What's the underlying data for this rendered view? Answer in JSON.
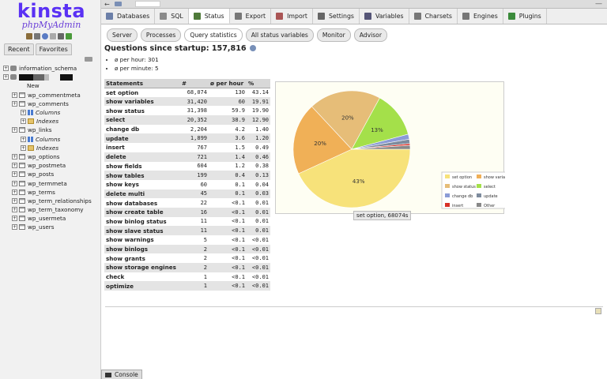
{
  "sidebar": {
    "logo_main": "kinsta",
    "logo_sub": "phpMyAdmin",
    "tabs": [
      "Recent",
      "Favorites"
    ],
    "tree": [
      {
        "label": "information_schema",
        "kind": "db",
        "level": 0
      },
      {
        "label": "",
        "kind": "db-redacted",
        "level": 0
      },
      {
        "label": "New",
        "kind": "new",
        "level": 1
      },
      {
        "label": "wp_commentmeta",
        "kind": "table",
        "level": 1
      },
      {
        "label": "wp_comments",
        "kind": "table",
        "level": 1
      },
      {
        "label": "Columns",
        "kind": "columns",
        "level": 2
      },
      {
        "label": "Indexes",
        "kind": "indexes",
        "level": 2
      },
      {
        "label": "wp_links",
        "kind": "table",
        "level": 1
      },
      {
        "label": "Columns",
        "kind": "columns",
        "level": 2
      },
      {
        "label": "Indexes",
        "kind": "indexes",
        "level": 2
      },
      {
        "label": "wp_options",
        "kind": "table",
        "level": 1
      },
      {
        "label": "wp_postmeta",
        "kind": "table",
        "level": 1
      },
      {
        "label": "wp_posts",
        "kind": "table",
        "level": 1
      },
      {
        "label": "wp_termmeta",
        "kind": "table",
        "level": 1
      },
      {
        "label": "wp_terms",
        "kind": "table",
        "level": 1
      },
      {
        "label": "wp_term_relationships",
        "kind": "table",
        "level": 1
      },
      {
        "label": "wp_term_taxonomy",
        "kind": "table",
        "level": 1
      },
      {
        "label": "wp_usermeta",
        "kind": "table",
        "level": 1
      },
      {
        "label": "wp_users",
        "kind": "table",
        "level": 1
      }
    ]
  },
  "main_tabs": [
    {
      "label": "Databases",
      "icon": "databases-icon",
      "color": "#6b7fa8"
    },
    {
      "label": "SQL",
      "icon": "sql-icon",
      "color": "#8a8a8a"
    },
    {
      "label": "Status",
      "icon": "status-icon",
      "color": "#4f7a3a",
      "active": true
    },
    {
      "label": "Export",
      "icon": "export-icon",
      "color": "#777"
    },
    {
      "label": "Import",
      "icon": "import-icon",
      "color": "#a55"
    },
    {
      "label": "Settings",
      "icon": "settings-icon",
      "color": "#666"
    },
    {
      "label": "Variables",
      "icon": "variables-icon",
      "color": "#557"
    },
    {
      "label": "Charsets",
      "icon": "charsets-icon",
      "color": "#777"
    },
    {
      "label": "Engines",
      "icon": "engines-icon",
      "color": "#777"
    },
    {
      "label": "Plugins",
      "icon": "plugins-icon",
      "color": "#3a8a3a"
    }
  ],
  "sub_tabs": [
    {
      "label": "Server"
    },
    {
      "label": "Processes"
    },
    {
      "label": "Query statistics",
      "active": true
    },
    {
      "label": "All status variables"
    },
    {
      "label": "Monitor"
    },
    {
      "label": "Advisor"
    }
  ],
  "questions": {
    "title": "Questions since startup: 157,816",
    "per_hour": "ø per hour: 301",
    "per_minute": "ø per minute: 5"
  },
  "table": {
    "headers": [
      "Statements",
      "#",
      "ø per hour",
      "%"
    ],
    "rows": [
      [
        "set option",
        "68,074",
        "130",
        "43.14"
      ],
      [
        "show variables",
        "31,420",
        "60",
        "19.91"
      ],
      [
        "show status",
        "31,398",
        "59.9",
        "19.90"
      ],
      [
        "select",
        "20,352",
        "38.9",
        "12.90"
      ],
      [
        "change db",
        "2,204",
        "4.2",
        "1.40"
      ],
      [
        "update",
        "1,899",
        "3.6",
        "1.20"
      ],
      [
        "insert",
        "767",
        "1.5",
        "0.49"
      ],
      [
        "delete",
        "721",
        "1.4",
        "0.46"
      ],
      [
        "show fields",
        "604",
        "1.2",
        "0.38"
      ],
      [
        "show tables",
        "199",
        "0.4",
        "0.13"
      ],
      [
        "show keys",
        "60",
        "0.1",
        "0.04"
      ],
      [
        "delete multi",
        "45",
        "0.1",
        "0.03"
      ],
      [
        "show databases",
        "22",
        "<0.1",
        "0.01"
      ],
      [
        "show create table",
        "16",
        "<0.1",
        "0.01"
      ],
      [
        "show binlog status",
        "11",
        "<0.1",
        "0.01"
      ],
      [
        "show slave status",
        "11",
        "<0.1",
        "0.01"
      ],
      [
        "show warnings",
        "5",
        "<0.1",
        "<0.01"
      ],
      [
        "show binlogs",
        "2",
        "<0.1",
        "<0.01"
      ],
      [
        "show grants",
        "2",
        "<0.1",
        "<0.01"
      ],
      [
        "show storage engines",
        "2",
        "<0.1",
        "<0.01"
      ],
      [
        "check",
        "1",
        "<0.1",
        "<0.01"
      ],
      [
        "optimize",
        "1",
        "<0.1",
        "<0.01"
      ]
    ]
  },
  "chart_data": {
    "type": "pie",
    "slices": [
      {
        "name": "set option",
        "value": 43.14,
        "color": "#f7e27a",
        "label": "43%"
      },
      {
        "name": "show variables",
        "value": 19.91,
        "color": "#f0b057",
        "label": "20%"
      },
      {
        "name": "show status",
        "value": 19.9,
        "color": "#e6bd78",
        "label": "20%"
      },
      {
        "name": "select",
        "value": 12.9,
        "color": "#a4e04a",
        "label": "13%"
      },
      {
        "name": "change db",
        "value": 1.4,
        "color": "#8b9bd6",
        "label": ""
      },
      {
        "name": "update",
        "value": 1.2,
        "color": "#7d8b9d",
        "label": ""
      },
      {
        "name": "insert",
        "value": 0.49,
        "color": "#d73027",
        "label": ""
      },
      {
        "name": "Other",
        "value": 1.06,
        "color": "#888888",
        "label": ""
      }
    ],
    "legend": [
      "set option",
      "show variables",
      "show status",
      "select",
      "change db",
      "update",
      "insert",
      "Other"
    ],
    "legend_placement": "bottom-right",
    "tooltip": "set option, 68074s"
  }
}
